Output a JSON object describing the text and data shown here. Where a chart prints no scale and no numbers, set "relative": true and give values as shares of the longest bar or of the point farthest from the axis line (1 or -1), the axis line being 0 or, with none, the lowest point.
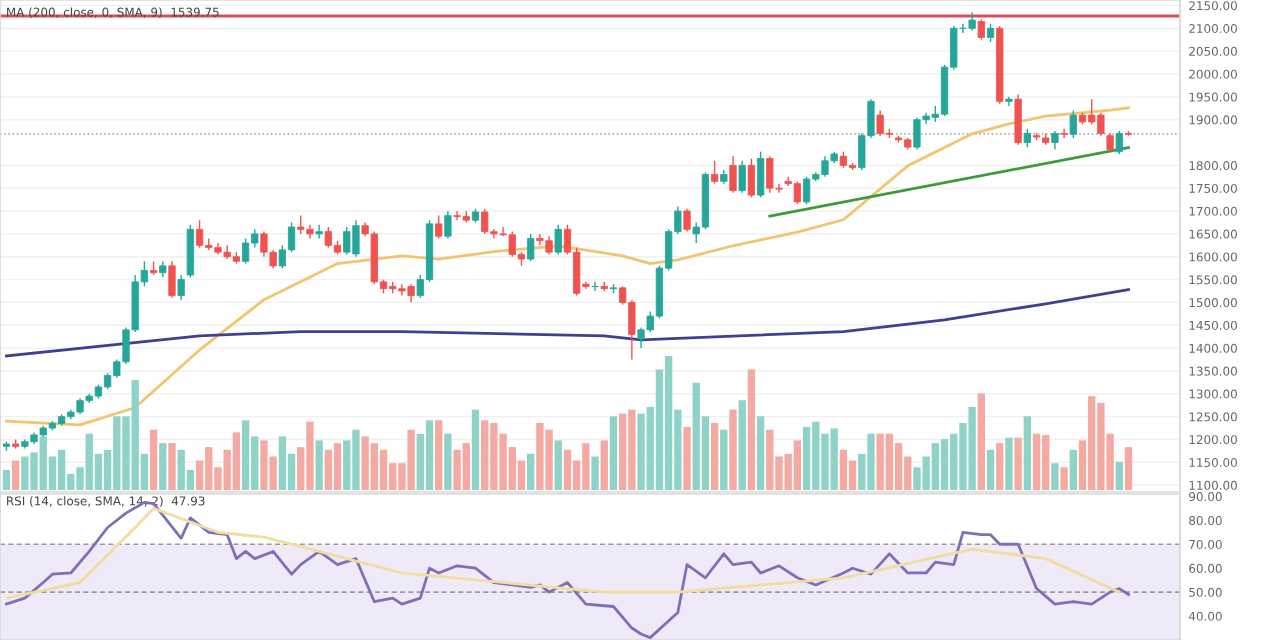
{
  "chart_data": [
    {
      "type": "candlestick",
      "title": "MA (200, close, 0, SMA, 9)  1539.75",
      "categories": [
        null,
        null,
        null,
        null,
        null,
        null,
        null,
        null,
        null,
        null,
        null,
        null,
        null,
        null,
        null,
        null,
        null,
        null,
        null,
        null,
        null,
        null,
        null,
        null,
        null,
        null,
        null,
        null,
        null,
        null,
        null,
        null,
        null,
        null,
        null,
        null,
        null,
        null,
        null,
        null,
        null,
        null,
        null,
        null,
        null,
        null,
        null,
        null,
        null,
        null,
        null,
        null,
        null,
        null,
        null,
        null,
        null,
        null,
        null,
        null,
        null,
        null,
        null,
        null,
        null,
        null,
        null,
        null,
        null,
        null,
        null,
        null,
        null,
        null,
        null,
        null,
        null,
        null,
        null,
        null,
        null,
        null,
        null,
        null,
        null,
        null,
        null,
        null,
        null,
        null,
        null,
        null,
        null,
        null,
        null,
        null,
        null,
        null,
        null,
        null,
        null,
        null,
        null,
        null,
        null,
        null,
        null,
        null,
        null,
        null,
        null,
        null,
        null,
        null,
        null,
        null,
        null,
        null,
        null,
        null,
        null,
        null,
        null
      ],
      "ohlc": [
        [
          1185,
          1195,
          1175,
          1190
        ],
        [
          1190,
          1200,
          1180,
          1185
        ],
        [
          1185,
          1200,
          1180,
          1195
        ],
        [
          1195,
          1215,
          1190,
          1210
        ],
        [
          1210,
          1230,
          1205,
          1225
        ],
        [
          1225,
          1240,
          1220,
          1235
        ],
        [
          1235,
          1255,
          1230,
          1250
        ],
        [
          1250,
          1265,
          1245,
          1260
        ],
        [
          1260,
          1290,
          1255,
          1285
        ],
        [
          1285,
          1300,
          1280,
          1295
        ],
        [
          1295,
          1320,
          1290,
          1315
        ],
        [
          1315,
          1345,
          1310,
          1340
        ],
        [
          1340,
          1375,
          1335,
          1370
        ],
        [
          1370,
          1445,
          1365,
          1440
        ],
        [
          1440,
          1560,
          1435,
          1545
        ],
        [
          1545,
          1590,
          1535,
          1570
        ],
        [
          1570,
          1590,
          1560,
          1565
        ],
        [
          1565,
          1590,
          1555,
          1580
        ],
        [
          1580,
          1590,
          1510,
          1515
        ],
        [
          1515,
          1560,
          1505,
          1550
        ],
        [
          1560,
          1670,
          1555,
          1660
        ],
        [
          1660,
          1680,
          1620,
          1625
        ],
        [
          1625,
          1640,
          1615,
          1620
        ],
        [
          1620,
          1630,
          1605,
          1610
        ],
        [
          1610,
          1625,
          1595,
          1600
        ],
        [
          1600,
          1610,
          1585,
          1590
        ],
        [
          1590,
          1640,
          1585,
          1630
        ],
        [
          1630,
          1660,
          1620,
          1650
        ],
        [
          1650,
          1655,
          1600,
          1610
        ],
        [
          1610,
          1615,
          1575,
          1580
        ],
        [
          1580,
          1625,
          1575,
          1615
        ],
        [
          1615,
          1675,
          1610,
          1665
        ],
        [
          1665,
          1690,
          1650,
          1660
        ],
        [
          1660,
          1670,
          1640,
          1650
        ],
        [
          1650,
          1670,
          1640,
          1655
        ],
        [
          1655,
          1665,
          1620,
          1625
        ],
        [
          1625,
          1635,
          1605,
          1610
        ],
        [
          1610,
          1665,
          1605,
          1655
        ],
        [
          1606,
          1680,
          1600,
          1668
        ],
        [
          1668,
          1675,
          1645,
          1650
        ],
        [
          1650,
          1655,
          1540,
          1545
        ],
        [
          1545,
          1550,
          1520,
          1530
        ],
        [
          1535,
          1545,
          1520,
          1530
        ],
        [
          1530,
          1540,
          1515,
          1525
        ],
        [
          1535,
          1540,
          1500,
          1515
        ],
        [
          1515,
          1560,
          1510,
          1550
        ],
        [
          1550,
          1680,
          1545,
          1672
        ],
        [
          1672,
          1690,
          1640,
          1645
        ],
        [
          1645,
          1700,
          1640,
          1690
        ],
        [
          1690,
          1700,
          1680,
          1688
        ],
        [
          1688,
          1700,
          1675,
          1680
        ],
        [
          1680,
          1705,
          1675,
          1698
        ],
        [
          1698,
          1705,
          1650,
          1655
        ],
        [
          1655,
          1660,
          1640,
          1650
        ],
        [
          1650,
          1665,
          1645,
          1648
        ],
        [
          1648,
          1655,
          1600,
          1605
        ],
        [
          1605,
          1610,
          1580,
          1595
        ],
        [
          1595,
          1650,
          1590,
          1640
        ],
        [
          1640,
          1650,
          1625,
          1635
        ],
        [
          1635,
          1645,
          1605,
          1610
        ],
        [
          1610,
          1670,
          1605,
          1660
        ],
        [
          1660,
          1670,
          1605,
          1610
        ],
        [
          1610,
          1620,
          1515,
          1520
        ],
        [
          1540,
          1545,
          1530,
          1535
        ],
        [
          1535,
          1545,
          1525,
          1535
        ],
        [
          1535,
          1545,
          1525,
          1530
        ],
        [
          1530,
          1540,
          1520,
          1532
        ],
        [
          1532,
          1535,
          1495,
          1500
        ],
        [
          1500,
          1505,
          1375,
          1430
        ],
        [
          1420,
          1445,
          1400,
          1440
        ],
        [
          1440,
          1480,
          1435,
          1470
        ],
        [
          1470,
          1580,
          1465,
          1575
        ],
        [
          1575,
          1660,
          1570,
          1655
        ],
        [
          1655,
          1710,
          1650,
          1700
        ],
        [
          1700,
          1705,
          1655,
          1660
        ],
        [
          1650,
          1675,
          1630,
          1665
        ],
        [
          1665,
          1785,
          1660,
          1780
        ],
        [
          1780,
          1810,
          1760,
          1765
        ],
        [
          1765,
          1790,
          1760,
          1780
        ],
        [
          1800,
          1820,
          1740,
          1745
        ],
        [
          1745,
          1810,
          1740,
          1800
        ],
        [
          1800,
          1815,
          1730,
          1735
        ],
        [
          1735,
          1830,
          1730,
          1815
        ],
        [
          1815,
          1820,
          1740,
          1750
        ],
        [
          1750,
          1760,
          1740,
          1748
        ],
        [
          1765,
          1775,
          1755,
          1760
        ],
        [
          1760,
          1765,
          1715,
          1720
        ],
        [
          1720,
          1775,
          1715,
          1770
        ],
        [
          1770,
          1785,
          1765,
          1780
        ],
        [
          1780,
          1820,
          1775,
          1810
        ],
        [
          1810,
          1830,
          1805,
          1825
        ],
        [
          1820,
          1830,
          1795,
          1800
        ],
        [
          1800,
          1805,
          1790,
          1795
        ],
        [
          1795,
          1870,
          1790,
          1865
        ],
        [
          1865,
          1945,
          1860,
          1940
        ],
        [
          1910,
          1920,
          1865,
          1870
        ],
        [
          1870,
          1880,
          1860,
          1868
        ],
        [
          1860,
          1865,
          1850,
          1856
        ],
        [
          1856,
          1860,
          1835,
          1840
        ],
        [
          1840,
          1905,
          1835,
          1900
        ],
        [
          1900,
          1915,
          1890,
          1908
        ],
        [
          1905,
          1930,
          1895,
          1912
        ],
        [
          1912,
          2020,
          1908,
          2015
        ],
        [
          2015,
          2105,
          2010,
          2100
        ],
        [
          2100,
          2110,
          2090,
          2100
        ],
        [
          2100,
          2135,
          2095,
          2118
        ],
        [
          2115,
          2120,
          2075,
          2080
        ],
        [
          2080,
          2110,
          2070,
          2100
        ],
        [
          2100,
          2105,
          1935,
          1940
        ],
        [
          1940,
          1950,
          1930,
          1945
        ],
        [
          1945,
          1955,
          1845,
          1850
        ],
        [
          1850,
          1880,
          1840,
          1870
        ],
        [
          1865,
          1870,
          1855,
          1862
        ],
        [
          1860,
          1870,
          1845,
          1850
        ],
        [
          1850,
          1875,
          1835,
          1870
        ],
        [
          1870,
          1880,
          1860,
          1868
        ],
        [
          1868,
          1920,
          1860,
          1910
        ],
        [
          1910,
          1915,
          1890,
          1895
        ],
        [
          1910,
          1945,
          1890,
          1895
        ],
        [
          1910,
          1915,
          1865,
          1870
        ],
        [
          1865,
          1870,
          1830,
          1835
        ],
        [
          1830,
          1875,
          1825,
          1870
        ],
        [
          1870,
          1875,
          1865,
          1868
        ]
      ],
      "colors": [
        "#26a69a",
        "#ef5350",
        "#26a69a",
        "#26a69a",
        "#26a69a",
        "#26a69a",
        "#26a69a",
        "#26a69a",
        "#26a69a",
        "#26a69a",
        "#26a69a",
        "#26a69a",
        "#26a69a",
        "#26a69a",
        "#26a69a",
        "#26a69a",
        "#ef5350",
        "#26a69a",
        "#ef5350",
        "#26a69a",
        "#26a69a",
        "#ef5350",
        "#ef5350",
        "#ef5350",
        "#ef5350",
        "#ef5350",
        "#26a69a",
        "#26a69a",
        "#ef5350",
        "#ef5350",
        "#26a69a",
        "#26a69a",
        "#ef5350",
        "#ef5350",
        "#26a69a",
        "#ef5350",
        "#ef5350",
        "#26a69a",
        "#26a69a",
        "#ef5350",
        "#ef5350",
        "#ef5350",
        "#ef5350",
        "#ef5350",
        "#ef5350",
        "#26a69a",
        "#26a69a",
        "#ef5350",
        "#26a69a",
        "#ef5350",
        "#ef5350",
        "#26a69a",
        "#ef5350",
        "#ef5350",
        "#ef5350",
        "#ef5350",
        "#ef5350",
        "#26a69a",
        "#ef5350",
        "#ef5350",
        "#26a69a",
        "#ef5350",
        "#ef5350",
        "#ef5350",
        "#26a69a",
        "#ef5350",
        "#26a69a",
        "#ef5350",
        "#ef5350",
        "#26a69a",
        "#26a69a",
        "#26a69a",
        "#26a69a",
        "#26a69a",
        "#ef5350",
        "#26a69a",
        "#26a69a",
        "#ef5350",
        "#26a69a",
        "#ef5350",
        "#26a69a",
        "#ef5350",
        "#26a69a",
        "#ef5350",
        "#ef5350",
        "#ef5350",
        "#ef5350",
        "#26a69a",
        "#26a69a",
        "#26a69a",
        "#26a69a",
        "#ef5350",
        "#ef5350",
        "#26a69a",
        "#26a69a",
        "#ef5350",
        "#ef5350",
        "#ef5350",
        "#ef5350",
        "#26a69a",
        "#26a69a",
        "#26a69a",
        "#26a69a",
        "#26a69a",
        "#26a69a",
        "#26a69a",
        "#ef5350",
        "#26a69a",
        "#ef5350",
        "#26a69a",
        "#ef5350",
        "#26a69a",
        "#ef5350",
        "#ef5350",
        "#26a69a",
        "#ef5350",
        "#26a69a",
        "#ef5350",
        "#ef5350",
        "#ef5350",
        "#ef5350",
        "#26a69a",
        "#ef5350"
      ],
      "series": [
        {
          "type": "line",
          "color": "#f2c46d",
          "values": [
            1240,
            null,
            null,
            null,
            null,
            null,
            null,
            null,
            1232,
            null,
            null,
            null,
            null,
            null,
            1270,
            null,
            null,
            null,
            null,
            null,
            null,
            1396,
            null,
            null,
            null,
            null,
            null,
            null,
            1506,
            null,
            null,
            null,
            null,
            null,
            null,
            null,
            1585,
            null,
            null,
            null,
            null,
            null,
            null,
            1602,
            null,
            null,
            null,
            1595,
            null,
            null,
            null,
            null,
            null,
            1611,
            null,
            null,
            null,
            null,
            null,
            null,
            1624,
            null,
            null,
            null,
            null,
            null,
            null,
            1602,
            null,
            null,
            1585,
            null,
            null,
            1593,
            null,
            null,
            null,
            null,
            null,
            1624,
            null,
            null,
            null,
            null,
            null,
            null,
            1654,
            null,
            null,
            null,
            null,
            1681,
            null,
            null,
            null,
            null,
            null,
            null,
            1799,
            null,
            null,
            null,
            null,
            null,
            null,
            1869,
            null,
            null,
            null,
            1891,
            null,
            null,
            null,
            1908,
            null,
            null,
            null,
            null,
            null,
            null,
            1921,
            null,
            1926
          ]
        },
        {
          "type": "line",
          "color": "#3f3f96",
          "values": [
            1383,
            null,
            null,
            null,
            null,
            null,
            null,
            null,
            null,
            null,
            null,
            null,
            null,
            null,
            null,
            null,
            null,
            null,
            null,
            null,
            null,
            1427,
            null,
            null,
            null,
            null,
            null,
            null,
            null,
            null,
            null,
            null,
            1436,
            null,
            null,
            null,
            null,
            null,
            null,
            null,
            null,
            null,
            null,
            1436,
            null,
            null,
            null,
            null,
            null,
            null,
            null,
            null,
            null,
            null,
            null,
            null,
            null,
            null,
            null,
            null,
            null,
            null,
            null,
            null,
            null,
            1427,
            null,
            null,
            null,
            1418,
            null,
            null,
            null,
            null,
            null,
            null,
            null,
            null,
            null,
            null,
            null,
            null,
            null,
            null,
            null,
            null,
            null,
            null,
            null,
            null,
            null,
            1436,
            null,
            null,
            null,
            null,
            null,
            null,
            null,
            null,
            null,
            null,
            1462,
            null,
            null,
            null,
            null,
            null,
            null,
            null,
            null,
            null,
            null,
            1497,
            null,
            null,
            null,
            null,
            null,
            null,
            null,
            null,
            1528
          ]
        },
        {
          "type": "line",
          "color": "#3d9a3d",
          "values": [
            null,
            null,
            null,
            null,
            null,
            null,
            null,
            null,
            null,
            null,
            null,
            null,
            null,
            null,
            null,
            null,
            null,
            null,
            null,
            null,
            null,
            null,
            null,
            null,
            null,
            null,
            null,
            null,
            null,
            null,
            null,
            null,
            null,
            null,
            null,
            null,
            null,
            null,
            null,
            null,
            null,
            null,
            null,
            null,
            null,
            null,
            null,
            null,
            null,
            null,
            null,
            null,
            null,
            null,
            null,
            null,
            null,
            null,
            null,
            null,
            null,
            null,
            null,
            null,
            null,
            null,
            null,
            null,
            null,
            null,
            null,
            null,
            null,
            null,
            null,
            null,
            null,
            null,
            null,
            null,
            null,
            null,
            null,
            1689,
            null,
            null,
            null,
            null,
            null,
            null,
            null,
            null,
            null,
            null,
            null,
            null,
            null,
            null,
            null,
            null,
            null,
            null,
            null,
            null,
            null,
            null,
            null,
            null,
            null,
            null,
            null,
            null,
            null,
            null,
            null,
            null,
            null,
            null,
            null,
            null,
            null,
            null,
            1839
          ]
        }
      ],
      "ref_lines": [
        {
          "axis": "y",
          "value": 2127,
          "color": "#d9505a",
          "line_style": "solid"
        },
        {
          "axis": "y",
          "value": 1869,
          "color": "#b0b0b0",
          "line_style": "dotted"
        }
      ],
      "ylim": [
        1085,
        2162
      ],
      "yticks": [
        {
          "value": 2150,
          "label": "2150.00"
        },
        {
          "value": 2100,
          "label": "2100.00"
        },
        {
          "value": 2050,
          "label": "2050.00"
        },
        {
          "value": 2000,
          "label": "2000.00"
        },
        {
          "value": 1950,
          "label": "1950.00"
        },
        {
          "value": 1900,
          "label": "1900.00"
        },
        {
          "value": 1800,
          "label": "1800.00"
        },
        {
          "value": 1750,
          "label": "1750.00"
        },
        {
          "value": 1700,
          "label": "1700.00"
        },
        {
          "value": 1650,
          "label": "1650.00"
        },
        {
          "value": 1600,
          "label": "1600.00"
        },
        {
          "value": 1550,
          "label": "1550.00"
        },
        {
          "value": 1500,
          "label": "1500.00"
        },
        {
          "value": 1450,
          "label": "1450.00"
        },
        {
          "value": 1400,
          "label": "1400.00"
        },
        {
          "value": 1350,
          "label": "1350.00"
        },
        {
          "value": 1300,
          "label": "1300.00"
        },
        {
          "value": 1250,
          "label": "1250.00"
        },
        {
          "value": 1200,
          "label": "1200.00"
        },
        {
          "value": 1150,
          "label": "1150.00"
        },
        {
          "value": 1100,
          "label": "1100.00"
        }
      ],
      "grid": "y",
      "tick_labels": "y"
    },
    {
      "type": "bar",
      "relative": true,
      "tick_labels": false,
      "categories": [
        null,
        null,
        null,
        null,
        null,
        null,
        null,
        null,
        null,
        null,
        null,
        null,
        null,
        null,
        null,
        null,
        null,
        null,
        null,
        null,
        null,
        null,
        null,
        null,
        null,
        null,
        null,
        null,
        null,
        null,
        null,
        null,
        null,
        null,
        null,
        null,
        null,
        null,
        null,
        null,
        null,
        null,
        null,
        null,
        null,
        null,
        null,
        null,
        null,
        null,
        null,
        null,
        null,
        null,
        null,
        null,
        null,
        null,
        null,
        null,
        null,
        null,
        null,
        null,
        null,
        null,
        null,
        null,
        null,
        null,
        null,
        null,
        null,
        null,
        null,
        null,
        null,
        null,
        null,
        null,
        null,
        null,
        null,
        null,
        null,
        null,
        null,
        null,
        null,
        null,
        null,
        null,
        null,
        null,
        null,
        null,
        null,
        null,
        null,
        null,
        null,
        null,
        null,
        null,
        null,
        null,
        null,
        null,
        null,
        null,
        null,
        null,
        null,
        null,
        null,
        null,
        null,
        null,
        null,
        null,
        null,
        null,
        null
      ],
      "values": [
        0.15,
        0.22,
        0.25,
        0.28,
        0.4,
        0.25,
        0.3,
        0.12,
        0.17,
        0.42,
        0.27,
        0.3,
        0.55,
        0.55,
        0.82,
        0.27,
        0.45,
        0.35,
        0.35,
        0.3,
        0.15,
        0.22,
        0.32,
        0.17,
        0.3,
        0.43,
        0.52,
        0.4,
        0.37,
        0.25,
        0.4,
        0.27,
        0.32,
        0.51,
        0.37,
        0.3,
        0.35,
        0.37,
        0.45,
        0.4,
        0.35,
        0.3,
        0.2,
        0.2,
        0.45,
        0.42,
        0.52,
        0.52,
        0.42,
        0.3,
        0.35,
        0.6,
        0.52,
        0.5,
        0.42,
        0.32,
        0.22,
        0.27,
        0.5,
        0.45,
        0.37,
        0.3,
        0.22,
        0.35,
        0.25,
        0.37,
        0.55,
        0.57,
        0.6,
        0.57,
        0.62,
        0.9,
        1.0,
        0.6,
        0.47,
        0.8,
        0.55,
        0.5,
        0.45,
        0.6,
        0.67,
        0.9,
        0.55,
        0.45,
        0.25,
        0.27,
        0.37,
        0.47,
        0.51,
        0.42,
        0.46,
        0.3,
        0.22,
        0.27,
        0.42,
        0.42,
        0.42,
        0.35,
        0.25,
        0.17,
        0.25,
        0.35,
        0.38,
        0.42,
        0.5,
        0.62,
        0.72,
        0.3,
        0.35,
        0.39,
        0.39,
        0.55,
        0.42,
        0.41,
        0.2,
        0.17,
        0.3,
        0.37,
        0.7,
        0.65,
        0.42,
        0.21,
        0.32
      ],
      "colors": [
        "#8fd3c8",
        "#f4a9a3",
        "#8fd3c8",
        "#8fd3c8",
        "#8fd3c8",
        "#8fd3c8",
        "#8fd3c8",
        "#8fd3c8",
        "#8fd3c8",
        "#8fd3c8",
        "#8fd3c8",
        "#8fd3c8",
        "#8fd3c8",
        "#8fd3c8",
        "#8fd3c8",
        "#8fd3c8",
        "#f4a9a3",
        "#8fd3c8",
        "#f4a9a3",
        "#8fd3c8",
        "#8fd3c8",
        "#f4a9a3",
        "#f4a9a3",
        "#f4a9a3",
        "#f4a9a3",
        "#f4a9a3",
        "#8fd3c8",
        "#8fd3c8",
        "#f4a9a3",
        "#f4a9a3",
        "#8fd3c8",
        "#8fd3c8",
        "#f4a9a3",
        "#f4a9a3",
        "#8fd3c8",
        "#f4a9a3",
        "#f4a9a3",
        "#8fd3c8",
        "#8fd3c8",
        "#f4a9a3",
        "#f4a9a3",
        "#f4a9a3",
        "#f4a9a3",
        "#f4a9a3",
        "#f4a9a3",
        "#8fd3c8",
        "#8fd3c8",
        "#f4a9a3",
        "#8fd3c8",
        "#f4a9a3",
        "#f4a9a3",
        "#8fd3c8",
        "#f4a9a3",
        "#f4a9a3",
        "#f4a9a3",
        "#f4a9a3",
        "#f4a9a3",
        "#8fd3c8",
        "#f4a9a3",
        "#f4a9a3",
        "#8fd3c8",
        "#f4a9a3",
        "#f4a9a3",
        "#f4a9a3",
        "#8fd3c8",
        "#f4a9a3",
        "#8fd3c8",
        "#f4a9a3",
        "#f4a9a3",
        "#8fd3c8",
        "#8fd3c8",
        "#8fd3c8",
        "#8fd3c8",
        "#8fd3c8",
        "#f4a9a3",
        "#8fd3c8",
        "#8fd3c8",
        "#f4a9a3",
        "#8fd3c8",
        "#f4a9a3",
        "#8fd3c8",
        "#f4a9a3",
        "#8fd3c8",
        "#f4a9a3",
        "#f4a9a3",
        "#f4a9a3",
        "#f4a9a3",
        "#8fd3c8",
        "#8fd3c8",
        "#8fd3c8",
        "#8fd3c8",
        "#f4a9a3",
        "#f4a9a3",
        "#8fd3c8",
        "#8fd3c8",
        "#f4a9a3",
        "#f4a9a3",
        "#f4a9a3",
        "#f4a9a3",
        "#8fd3c8",
        "#8fd3c8",
        "#8fd3c8",
        "#8fd3c8",
        "#8fd3c8",
        "#8fd3c8",
        "#8fd3c8",
        "#f4a9a3",
        "#8fd3c8",
        "#f4a9a3",
        "#8fd3c8",
        "#f4a9a3",
        "#8fd3c8",
        "#f4a9a3",
        "#f4a9a3",
        "#8fd3c8",
        "#f4a9a3",
        "#8fd3c8",
        "#f4a9a3",
        "#f4a9a3",
        "#f4a9a3",
        "#f4a9a3",
        "#8fd3c8",
        "#f4a9a3"
      ]
    },
    {
      "type": "line",
      "title": "RSI (14, close, SMA, 14, 2)  47.93",
      "categories": [
        null,
        null,
        null,
        null,
        null,
        null,
        null,
        null,
        null,
        null,
        null,
        null,
        null,
        null,
        null,
        null,
        null,
        null,
        null,
        null,
        null,
        null,
        null,
        null,
        null,
        null,
        null,
        null,
        null,
        null,
        null,
        null,
        null,
        null,
        null,
        null,
        null,
        null,
        null,
        null,
        null,
        null,
        null,
        null,
        null,
        null,
        null,
        null,
        null,
        null,
        null,
        null,
        null,
        null,
        null,
        null,
        null,
        null,
        null,
        null,
        null,
        null,
        null,
        null,
        null,
        null,
        null,
        null,
        null,
        null,
        null,
        null,
        null,
        null,
        null,
        null,
        null,
        null,
        null,
        null,
        null,
        null,
        null,
        null,
        null,
        null,
        null,
        null,
        null,
        null,
        null,
        null,
        null,
        null,
        null,
        null,
        null,
        null,
        null,
        null,
        null,
        null,
        null,
        null,
        null,
        null,
        null,
        null,
        null,
        null,
        null,
        null,
        null,
        null,
        null,
        null,
        null,
        null,
        null,
        null,
        null,
        null,
        null
      ],
      "series": [
        {
          "color": "#7e6fb8",
          "values": [
            45,
            null,
            47.5,
            null,
            54,
            57.5,
            null,
            58,
            null,
            67,
            null,
            77,
            null,
            83,
            null,
            87.5,
            87,
            null,
            null,
            72.5,
            81,
            null,
            75,
            null,
            74,
            64,
            67,
            64,
            null,
            67,
            null,
            57.5,
            61.5,
            null,
            67,
            null,
            61.5,
            null,
            64,
            null,
            46,
            null,
            47.5,
            45,
            null,
            47.5,
            60,
            58,
            null,
            61,
            null,
            60,
            null,
            54,
            null,
            53,
            null,
            52,
            53,
            50,
            null,
            54,
            null,
            45,
            null,
            null,
            44,
            null,
            35,
            32.5,
            31,
            null,
            null,
            41.5,
            61.5,
            null,
            56,
            null,
            66,
            61.5,
            null,
            62.5,
            58,
            null,
            61,
            null,
            56,
            null,
            53,
            null,
            null,
            58,
            60,
            null,
            57.5,
            null,
            66,
            null,
            58,
            null,
            58,
            62.5,
            null,
            61.5,
            75,
            null,
            74,
            74,
            70,
            null,
            70,
            null,
            51.5,
            null,
            45,
            null,
            46,
            null,
            45,
            null,
            50,
            51.5,
            49
          ]
        },
        {
          "color": "#f3dca0",
          "values": [
            47.5,
            null,
            null,
            null,
            null,
            null,
            null,
            null,
            54,
            null,
            null,
            null,
            null,
            null,
            77,
            null,
            85,
            null,
            null,
            null,
            null,
            null,
            null,
            75,
            null,
            null,
            null,
            null,
            73,
            null,
            null,
            null,
            null,
            null,
            null,
            null,
            null,
            null,
            null,
            null,
            null,
            null,
            null,
            58,
            null,
            null,
            null,
            null,
            null,
            null,
            null,
            null,
            null,
            null,
            null,
            null,
            null,
            null,
            null,
            null,
            null,
            null,
            null,
            null,
            null,
            50,
            null,
            null,
            null,
            null,
            null,
            null,
            null,
            50,
            null,
            null,
            null,
            null,
            null,
            null,
            null,
            null,
            null,
            null,
            null,
            null,
            null,
            null,
            null,
            null,
            null,
            56,
            null,
            null,
            null,
            null,
            null,
            null,
            null,
            null,
            null,
            null,
            null,
            null,
            null,
            68,
            null,
            null,
            null,
            null,
            null,
            null,
            null,
            64,
            null,
            null,
            null,
            null,
            null,
            null,
            null,
            50,
            null
          ]
        }
      ],
      "bands": [
        {
          "axis": "y",
          "from": 30,
          "to": 70,
          "color": "#eeeaf7"
        }
      ],
      "ref_lines": [
        {
          "axis": "y",
          "value": 70,
          "color": "#9a9a9a",
          "line_style": "dashed"
        },
        {
          "axis": "y",
          "value": 50,
          "color": "#9a9a9a",
          "line_style": "dashed"
        }
      ],
      "ylim": [
        30,
        91
      ],
      "yticks": [
        {
          "value": 40,
          "label": "40.00"
        },
        {
          "value": 50,
          "label": "50.00"
        },
        {
          "value": 60,
          "label": "60.00"
        },
        {
          "value": 70,
          "label": "70.00"
        },
        {
          "value": 80,
          "label": "80.00"
        },
        {
          "value": 90,
          "label": "90.00"
        }
      ],
      "tick_labels": "y"
    }
  ]
}
